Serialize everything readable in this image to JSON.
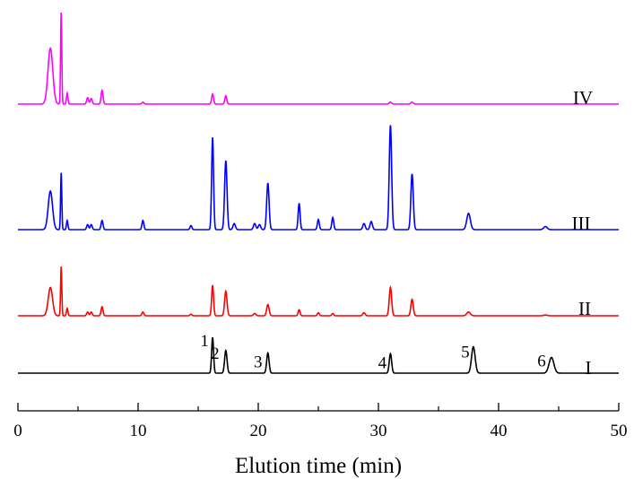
{
  "chart_data": {
    "type": "line",
    "title": "",
    "xlabel": "Elution time (min)",
    "ylabel": "",
    "xlim": [
      0,
      50
    ],
    "x_ticks": [
      0,
      10,
      20,
      30,
      40,
      50
    ],
    "grid": false,
    "legend": "none",
    "series": [
      {
        "name": "IV",
        "color": "#ff00ff",
        "peaks": [
          {
            "t": 2.7,
            "h": 0.61,
            "w": 0.2
          },
          {
            "t": 3.6,
            "h": 1.0,
            "w": 0.05
          },
          {
            "t": 4.1,
            "h": 0.12,
            "w": 0.06
          },
          {
            "t": 5.8,
            "h": 0.07,
            "w": 0.08
          },
          {
            "t": 6.1,
            "h": 0.06,
            "w": 0.08
          },
          {
            "t": 7.0,
            "h": 0.15,
            "w": 0.08
          },
          {
            "t": 10.4,
            "h": 0.02,
            "w": 0.08
          },
          {
            "t": 16.2,
            "h": 0.11,
            "w": 0.08
          },
          {
            "t": 17.3,
            "h": 0.09,
            "w": 0.08
          },
          {
            "t": 31.0,
            "h": 0.02,
            "w": 0.1
          },
          {
            "t": 32.8,
            "h": 0.02,
            "w": 0.1
          }
        ]
      },
      {
        "name": "III",
        "color": "#0000ff",
        "peaks": [
          {
            "t": 2.7,
            "h": 0.38,
            "w": 0.18
          },
          {
            "t": 3.6,
            "h": 0.56,
            "w": 0.05
          },
          {
            "t": 4.1,
            "h": 0.09,
            "w": 0.06
          },
          {
            "t": 5.8,
            "h": 0.05,
            "w": 0.08
          },
          {
            "t": 6.1,
            "h": 0.05,
            "w": 0.08
          },
          {
            "t": 7.0,
            "h": 0.09,
            "w": 0.08
          },
          {
            "t": 10.4,
            "h": 0.09,
            "w": 0.08
          },
          {
            "t": 14.4,
            "h": 0.04,
            "w": 0.08
          },
          {
            "t": 16.2,
            "h": 0.91,
            "w": 0.08
          },
          {
            "t": 17.3,
            "h": 0.68,
            "w": 0.1
          },
          {
            "t": 18.0,
            "h": 0.06,
            "w": 0.1
          },
          {
            "t": 19.7,
            "h": 0.06,
            "w": 0.1
          },
          {
            "t": 20.1,
            "h": 0.05,
            "w": 0.1
          },
          {
            "t": 20.8,
            "h": 0.46,
            "w": 0.1
          },
          {
            "t": 23.4,
            "h": 0.26,
            "w": 0.08
          },
          {
            "t": 25.0,
            "h": 0.1,
            "w": 0.08
          },
          {
            "t": 26.2,
            "h": 0.12,
            "w": 0.08
          },
          {
            "t": 28.8,
            "h": 0.06,
            "w": 0.1
          },
          {
            "t": 29.4,
            "h": 0.08,
            "w": 0.1
          },
          {
            "t": 31.0,
            "h": 1.03,
            "w": 0.1
          },
          {
            "t": 32.8,
            "h": 0.55,
            "w": 0.1
          },
          {
            "t": 37.5,
            "h": 0.16,
            "w": 0.15
          },
          {
            "t": 43.9,
            "h": 0.03,
            "w": 0.15
          }
        ]
      },
      {
        "name": "II",
        "color": "#ff0000",
        "peaks": [
          {
            "t": 2.7,
            "h": 0.38,
            "w": 0.18
          },
          {
            "t": 3.6,
            "h": 0.66,
            "w": 0.05
          },
          {
            "t": 4.1,
            "h": 0.1,
            "w": 0.06
          },
          {
            "t": 5.8,
            "h": 0.05,
            "w": 0.08
          },
          {
            "t": 6.1,
            "h": 0.05,
            "w": 0.08
          },
          {
            "t": 7.0,
            "h": 0.12,
            "w": 0.08
          },
          {
            "t": 10.4,
            "h": 0.05,
            "w": 0.08
          },
          {
            "t": 14.4,
            "h": 0.02,
            "w": 0.08
          },
          {
            "t": 16.2,
            "h": 0.41,
            "w": 0.08
          },
          {
            "t": 17.3,
            "h": 0.33,
            "w": 0.1
          },
          {
            "t": 19.7,
            "h": 0.03,
            "w": 0.1
          },
          {
            "t": 20.8,
            "h": 0.15,
            "w": 0.1
          },
          {
            "t": 23.4,
            "h": 0.08,
            "w": 0.08
          },
          {
            "t": 25.0,
            "h": 0.04,
            "w": 0.08
          },
          {
            "t": 26.2,
            "h": 0.03,
            "w": 0.08
          },
          {
            "t": 28.8,
            "h": 0.04,
            "w": 0.1
          },
          {
            "t": 31.0,
            "h": 0.38,
            "w": 0.1
          },
          {
            "t": 32.8,
            "h": 0.22,
            "w": 0.1
          },
          {
            "t": 37.5,
            "h": 0.05,
            "w": 0.15
          },
          {
            "t": 43.9,
            "h": 0.01,
            "w": 0.15
          }
        ]
      },
      {
        "name": "I",
        "color": "#000000",
        "peaks": [
          {
            "t": 16.2,
            "h": 0.57,
            "w": 0.08
          },
          {
            "t": 17.3,
            "h": 0.36,
            "w": 0.1
          },
          {
            "t": 20.8,
            "h": 0.32,
            "w": 0.1
          },
          {
            "t": 31.0,
            "h": 0.31,
            "w": 0.1
          },
          {
            "t": 37.9,
            "h": 0.42,
            "w": 0.15
          },
          {
            "t": 44.4,
            "h": 0.25,
            "w": 0.2
          }
        ],
        "peak_labels": [
          {
            "label": "1",
            "t": 16.2
          },
          {
            "label": "2",
            "t": 17.3
          },
          {
            "label": "3",
            "t": 20.8
          },
          {
            "label": "4",
            "t": 31.0
          },
          {
            "label": "5",
            "t": 37.9
          },
          {
            "label": "6",
            "t": 44.4
          }
        ]
      }
    ]
  }
}
